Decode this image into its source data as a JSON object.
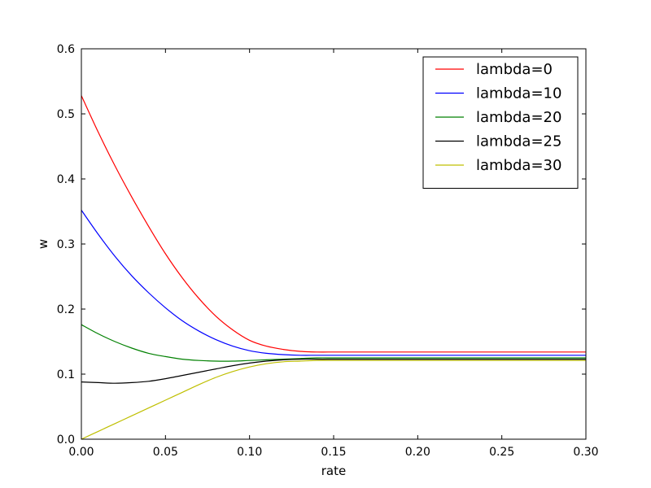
{
  "chart_data": {
    "type": "line",
    "title": "",
    "xlabel": "rate",
    "ylabel": "w",
    "xlim": [
      0.0,
      0.3
    ],
    "ylim": [
      0.0,
      0.6
    ],
    "xticks": [
      "0.00",
      "0.05",
      "0.10",
      "0.15",
      "0.20",
      "0.25",
      "0.30"
    ],
    "yticks": [
      "0.0",
      "0.1",
      "0.2",
      "0.3",
      "0.4",
      "0.5",
      "0.6"
    ],
    "grid": false,
    "legend_position": "top-right",
    "x": [
      0.0,
      0.01,
      0.02,
      0.03,
      0.04,
      0.05,
      0.06,
      0.07,
      0.08,
      0.09,
      0.1,
      0.11,
      0.12,
      0.13,
      0.14,
      0.15,
      0.16,
      0.17,
      0.18,
      0.2,
      0.22,
      0.24,
      0.26,
      0.28,
      0.3
    ],
    "series": [
      {
        "name": "lambda=0",
        "color": "#ff0000",
        "values": [
          0.528,
          0.472,
          0.42,
          0.372,
          0.327,
          0.285,
          0.248,
          0.216,
          0.189,
          0.168,
          0.152,
          0.143,
          0.138,
          0.135,
          0.134,
          0.134,
          0.134,
          0.134,
          0.134,
          0.134,
          0.134,
          0.134,
          0.134,
          0.134,
          0.134
        ]
      },
      {
        "name": "lambda=10",
        "color": "#0000ff",
        "values": [
          0.352,
          0.315,
          0.281,
          0.251,
          0.225,
          0.202,
          0.182,
          0.166,
          0.153,
          0.143,
          0.136,
          0.132,
          0.13,
          0.129,
          0.129,
          0.129,
          0.129,
          0.129,
          0.129,
          0.129,
          0.129,
          0.129,
          0.129,
          0.129,
          0.129
        ]
      },
      {
        "name": "lambda=20",
        "color": "#008000",
        "values": [
          0.176,
          0.162,
          0.15,
          0.14,
          0.132,
          0.127,
          0.123,
          0.121,
          0.12,
          0.12,
          0.121,
          0.122,
          0.123,
          0.124,
          0.125,
          0.125,
          0.125,
          0.125,
          0.125,
          0.125,
          0.125,
          0.125,
          0.125,
          0.125,
          0.125
        ]
      },
      {
        "name": "lambda=25",
        "color": "#000000",
        "values": [
          0.088,
          0.087,
          0.086,
          0.087,
          0.089,
          0.093,
          0.098,
          0.103,
          0.108,
          0.113,
          0.117,
          0.12,
          0.122,
          0.123,
          0.123,
          0.123,
          0.123,
          0.123,
          0.123,
          0.123,
          0.123,
          0.123,
          0.123,
          0.123,
          0.123
        ]
      },
      {
        "name": "lambda=30",
        "color": "#bfbf00",
        "values": [
          0.0,
          0.012,
          0.024,
          0.036,
          0.048,
          0.06,
          0.072,
          0.084,
          0.095,
          0.104,
          0.111,
          0.116,
          0.119,
          0.12,
          0.121,
          0.121,
          0.121,
          0.121,
          0.121,
          0.121,
          0.121,
          0.121,
          0.121,
          0.121,
          0.121
        ]
      }
    ]
  }
}
